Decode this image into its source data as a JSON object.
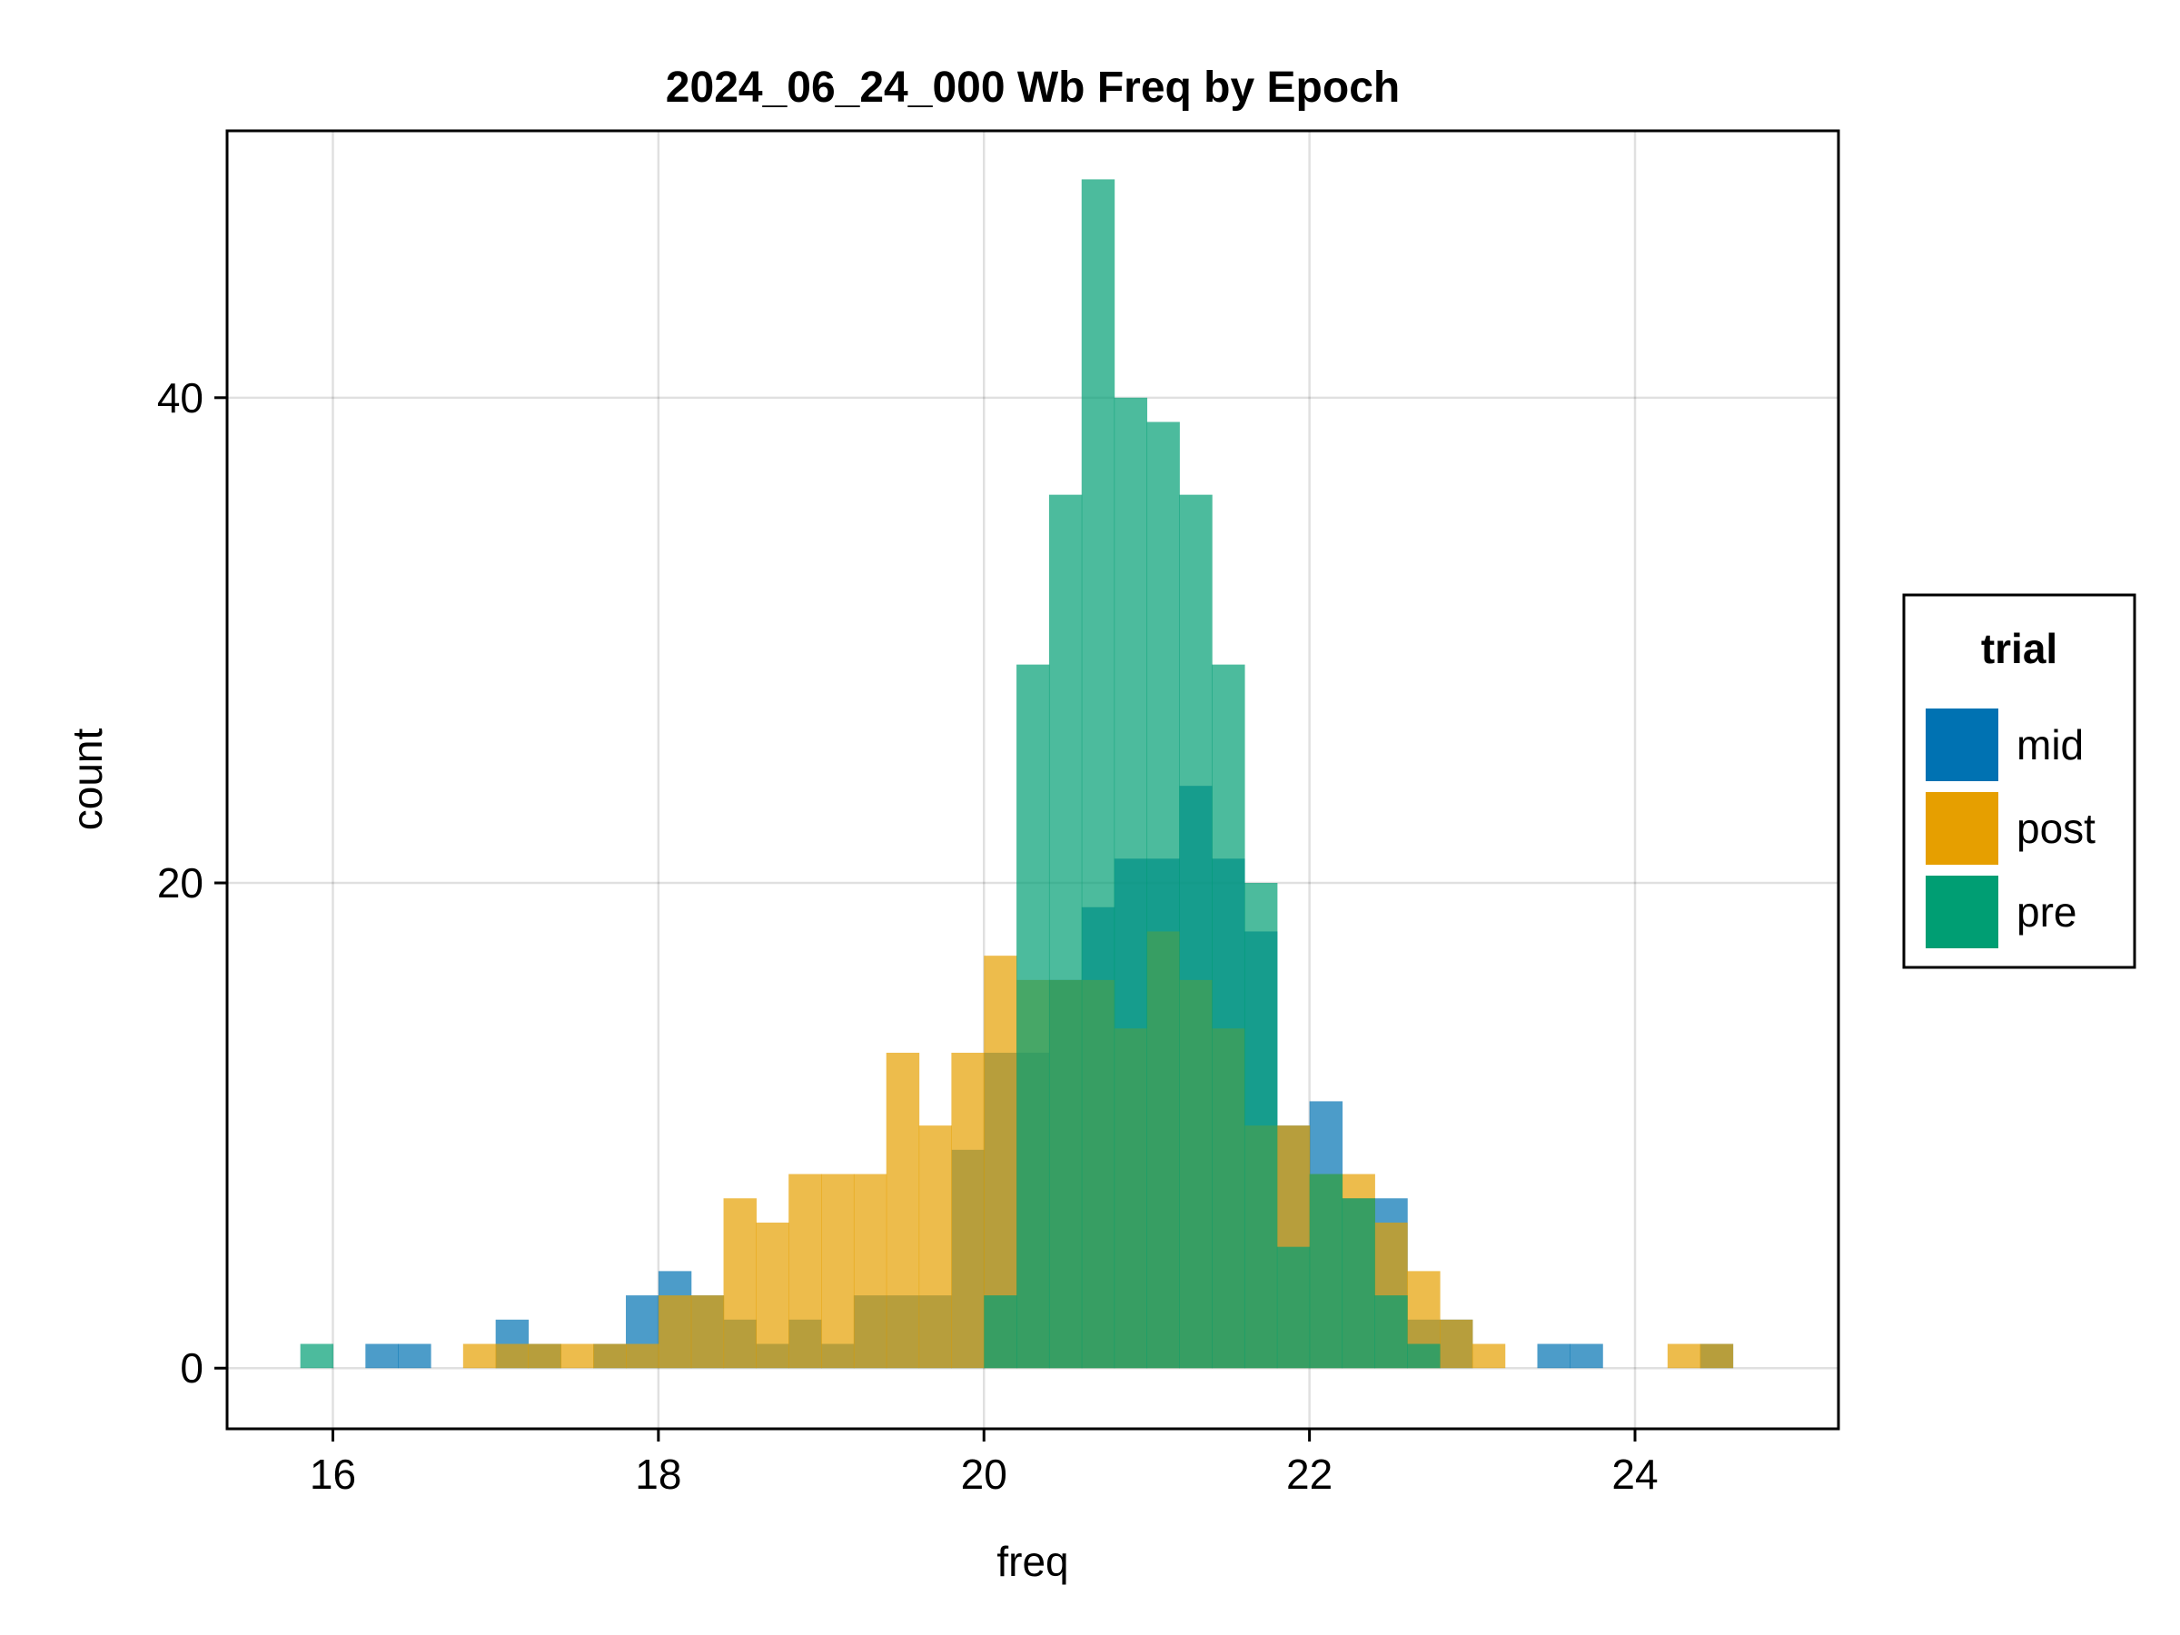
{
  "chart_data": {
    "type": "bar",
    "title": "2024_06_24_000 Wb Freq by Epoch",
    "xlabel": "freq",
    "ylabel": "count",
    "xlim": [
      15.35,
      25.25
    ],
    "ylim": [
      -2.5,
      51
    ],
    "xticks": [
      "16",
      "18",
      "20",
      "22",
      "24"
    ],
    "yticks": [
      "0",
      "20",
      "40"
    ],
    "grid": true,
    "legend": {
      "title": "trial",
      "position": "right"
    },
    "bin_start": 15.8,
    "bin_width": 0.2,
    "series": [
      {
        "name": "mid",
        "color": "#0072B2",
        "values": [
          0,
          0,
          1,
          1,
          0,
          0,
          2,
          1,
          0,
          1,
          3,
          4,
          3,
          2,
          1,
          2,
          1,
          3,
          3,
          3,
          9,
          13,
          13,
          16,
          19,
          21,
          21,
          24,
          21,
          18,
          10,
          11,
          7,
          7,
          2,
          2,
          0,
          0,
          1,
          1,
          0,
          0,
          0,
          1,
          0,
          0,
          0,
          0,
          0,
          0,
          0,
          0,
          0,
          0,
          0,
          0,
          0,
          0,
          0,
          0,
          0,
          0,
          0,
          0,
          0,
          0,
          0,
          0,
          0,
          1,
          0,
          0,
          1
        ]
      },
      {
        "name": "post",
        "color": "#E69F00",
        "values": [
          0,
          0,
          0,
          0,
          0,
          1,
          1,
          1,
          1,
          1,
          1,
          3,
          3,
          7,
          6,
          8,
          8,
          8,
          13,
          10,
          13,
          17,
          16,
          16,
          16,
          14,
          18,
          16,
          14,
          10,
          10,
          8,
          8,
          6,
          4,
          2,
          1,
          0,
          0,
          0,
          0,
          0,
          1,
          1,
          0,
          0,
          0,
          0,
          0,
          0,
          0,
          0,
          0,
          0,
          0,
          0,
          0,
          0,
          0,
          0,
          0,
          0,
          0,
          0,
          0,
          0,
          0,
          0,
          0,
          0,
          0,
          0,
          0
        ]
      },
      {
        "name": "pre",
        "color": "#009E73",
        "values": [
          1,
          0,
          0,
          0,
          0,
          0,
          0,
          0,
          0,
          0,
          0,
          0,
          0,
          0,
          0,
          0,
          0,
          0,
          0,
          0,
          0,
          3,
          29,
          36,
          49,
          40,
          39,
          36,
          29,
          20,
          5,
          8,
          7,
          3,
          1,
          0,
          0,
          0,
          0,
          0,
          0,
          0,
          0,
          0,
          0,
          0,
          0,
          0,
          0,
          0,
          0,
          0,
          0,
          0,
          0,
          0,
          0,
          0,
          0,
          0,
          0,
          0,
          0,
          0,
          0,
          0,
          0,
          0,
          0,
          0,
          0,
          0,
          0
        ]
      }
    ]
  }
}
